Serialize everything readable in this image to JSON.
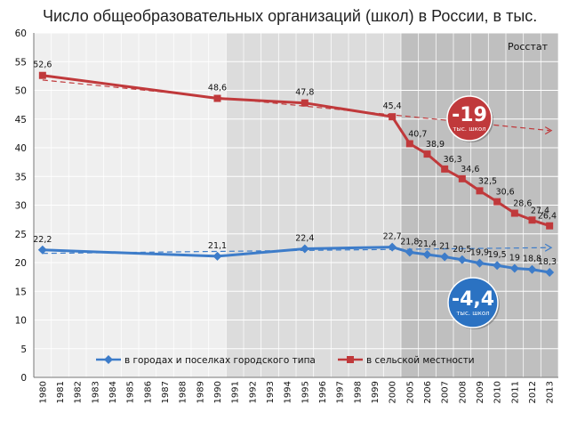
{
  "chart_data": {
    "type": "line",
    "title": "Число общеобразовательных организаций (школ) в России, в тыс.",
    "source": "Росстат",
    "xlabel": "",
    "ylabel": "",
    "ylim": [
      0,
      60
    ],
    "yticks": [
      "0",
      "5",
      "10",
      "15",
      "20",
      "25",
      "30",
      "35",
      "40",
      "45",
      "50",
      "55",
      "60"
    ],
    "categories": [
      "1980",
      "1981",
      "1982",
      "1983",
      "1984",
      "1985",
      "1986",
      "1987",
      "1988",
      "1989",
      "1990",
      "1991",
      "1992",
      "1993",
      "1994",
      "1995",
      "1996",
      "1997",
      "1998",
      "1999",
      "2000",
      "2005",
      "2006",
      "2007",
      "2008",
      "2009",
      "2010",
      "2011",
      "2012",
      "2013"
    ],
    "grid": true,
    "legend_position": "bottom",
    "series": [
      {
        "name": "в городах и поселках городского типа",
        "color": "#3d7cc9",
        "marker": "diamond",
        "points": [
          {
            "x": "1980",
            "y": 22.2,
            "label": "22,2"
          },
          {
            "x": "1990",
            "y": 21.1,
            "label": "21,1"
          },
          {
            "x": "1995",
            "y": 22.4,
            "label": "22,4"
          },
          {
            "x": "2000",
            "y": 22.7,
            "label": "22,7"
          },
          {
            "x": "2005",
            "y": 21.8,
            "label": "21,8"
          },
          {
            "x": "2006",
            "y": 21.4,
            "label": "21,4"
          },
          {
            "x": "2007",
            "y": 21.0,
            "label": "21"
          },
          {
            "x": "2008",
            "y": 20.5,
            "label": "20,5"
          },
          {
            "x": "2009",
            "y": 19.9,
            "label": "19,9"
          },
          {
            "x": "2010",
            "y": 19.5,
            "label": "19,5"
          },
          {
            "x": "2011",
            "y": 19.0,
            "label": "19"
          },
          {
            "x": "2012",
            "y": 18.8,
            "label": "18,8"
          },
          {
            "x": "2013",
            "y": 18.3,
            "label": "18,3"
          }
        ],
        "trend": [
          {
            "x": "1980",
            "y": 21.6
          },
          {
            "x": "2013",
            "y": 22.6
          }
        ]
      },
      {
        "name": "в сельской местности",
        "color": "#c0393b",
        "marker": "square",
        "points": [
          {
            "x": "1980",
            "y": 52.6,
            "label": "52,6"
          },
          {
            "x": "1990",
            "y": 48.6,
            "label": "48,6"
          },
          {
            "x": "1995",
            "y": 47.8,
            "label": "47,8"
          },
          {
            "x": "2000",
            "y": 45.4,
            "label": "45,4"
          },
          {
            "x": "2005",
            "y": 40.7,
            "label": "40,7"
          },
          {
            "x": "2006",
            "y": 38.9,
            "label": "38,9"
          },
          {
            "x": "2007",
            "y": 36.3,
            "label": "36,3"
          },
          {
            "x": "2008",
            "y": 34.6,
            "label": "34,6"
          },
          {
            "x": "2009",
            "y": 32.5,
            "label": "32,5"
          },
          {
            "x": "2010",
            "y": 30.6,
            "label": "30,6"
          },
          {
            "x": "2011",
            "y": 28.6,
            "label": "28,6"
          },
          {
            "x": "2012",
            "y": 27.4,
            "label": "27,4"
          },
          {
            "x": "2013",
            "y": 26.4,
            "label": "26,4"
          }
        ],
        "trend": [
          {
            "x": "1980",
            "y": 51.8
          },
          {
            "x": "2013",
            "y": 43.0
          }
        ]
      }
    ],
    "shaded_bands": [
      {
        "from": "1991",
        "to": "2000",
        "color": "#dcdcdc"
      },
      {
        "from": "2000",
        "to": "2013",
        "color": "#bfbfbf"
      }
    ],
    "callouts": [
      {
        "value": "-19",
        "caption": "тыс. школ",
        "color": "#c0393b",
        "near": "в сельской местности"
      },
      {
        "value": "-4,4",
        "caption": "тыс. школ",
        "color": "#2b72c2",
        "near": "в городах и поселках городского типа"
      }
    ]
  }
}
